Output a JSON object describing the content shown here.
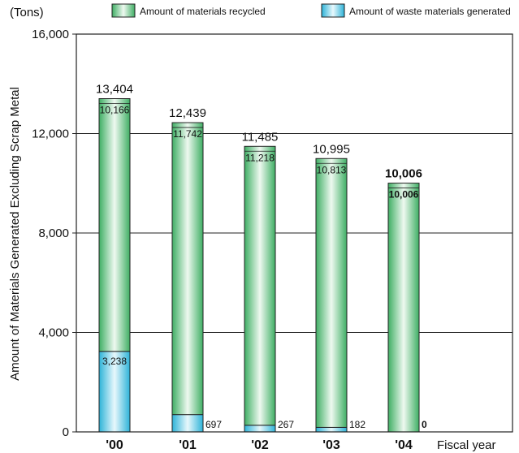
{
  "chart_data": {
    "type": "bar",
    "stacked": true,
    "unit_label": "(Tons)",
    "ylabel": "Amount of Materials Generated Excluding Scrap Metal",
    "xlabel": "Fiscal year",
    "ylim": [
      0,
      16000
    ],
    "yticks": [
      0,
      4000,
      8000,
      12000,
      16000
    ],
    "ytick_labels": [
      "0",
      "4,000",
      "8,000",
      "12,000",
      "16,000"
    ],
    "grid": true,
    "legend_position": "top",
    "categories": [
      "'00",
      "'01",
      "'02",
      "'03",
      "'04"
    ],
    "series": [
      {
        "name": "Amount of waste materials generated",
        "color": "#4fc0dc",
        "values": [
          3238,
          697,
          267,
          182,
          0
        ],
        "labels": [
          "3,238",
          "697",
          "267",
          "182",
          "0"
        ]
      },
      {
        "name": "Amount of materials recycled",
        "color": "#5cbf7a",
        "values": [
          10166,
          11742,
          11218,
          10813,
          10006
        ],
        "labels": [
          "10,166",
          "11,742",
          "11,218",
          "10,813",
          "10,006"
        ]
      }
    ],
    "totals": [
      13404,
      12439,
      11485,
      10995,
      10006
    ],
    "total_labels": [
      "13,404",
      "12,439",
      "11,485",
      "10,995",
      "10,006"
    ],
    "highlight_category_index": 4
  }
}
